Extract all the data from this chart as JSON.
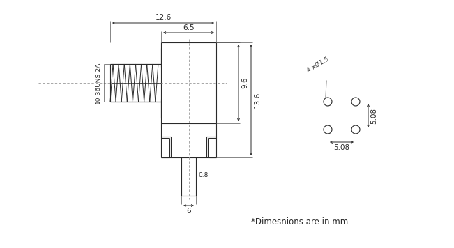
{
  "background_color": "#ffffff",
  "line_color": "#2a2a2a",
  "dim_color": "#2a2a2a",
  "note_text": "*Dimesnions are in mm",
  "label_10_36": "10-36UNS-2A",
  "dim_12_6": "12.6",
  "dim_6_5": "6.5",
  "dim_9_6": "9.6",
  "dim_13_6": "13.6",
  "dim_0_8": "0.8",
  "dim_6": "6",
  "dim_5_08_h": "5.08",
  "dim_5_08_v": "5.08",
  "dim_4x": "4 xØ1.5"
}
